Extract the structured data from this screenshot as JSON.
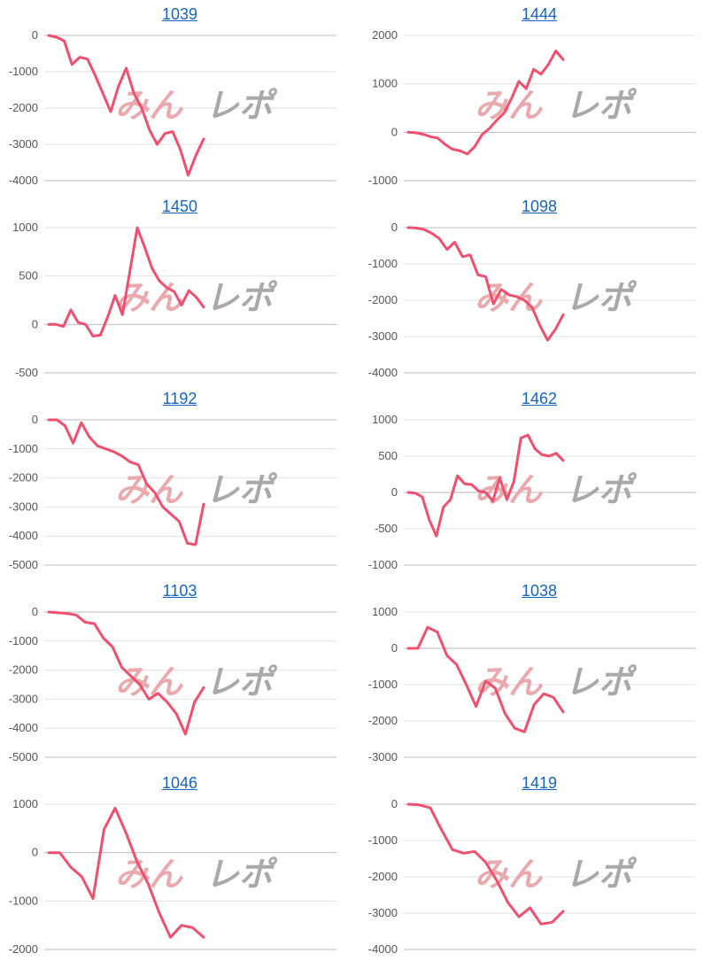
{
  "colors": {
    "line": "#f0506e",
    "grid": "#e2e2e2",
    "axis": "#bbbbbb",
    "tick_text": "#555555",
    "link": "#1565c0",
    "watermark_pink": "#e9a9ad",
    "watermark_gray": "#a9a9a9"
  },
  "chart_data": [
    {
      "type": "line",
      "title": "1039",
      "ylim": [
        -4000,
        0
      ],
      "yticks": [
        0,
        -1000,
        -2000,
        -3000,
        -4000
      ],
      "ytick_labels": [
        "0",
        "-1000",
        "-2000",
        "-3000",
        "-4000"
      ],
      "grid": true,
      "series": [
        {
          "values": [
            0,
            -50,
            -150,
            -800,
            -600,
            -650,
            -1100,
            -1600,
            -2100,
            -1400,
            -900,
            -1600,
            -2000,
            -2600,
            -3000,
            -2700,
            -2650,
            -3150,
            -3850,
            -3300,
            -2850
          ]
        }
      ]
    },
    {
      "type": "line",
      "title": "1444",
      "ylim": [
        -1000,
        2000
      ],
      "yticks": [
        2000,
        1000,
        0,
        -1000
      ],
      "ytick_labels": [
        "2000",
        "1000",
        "0",
        "-1000"
      ],
      "grid": true,
      "series": [
        {
          "values": [
            0,
            -10,
            -40,
            -90,
            -120,
            -250,
            -350,
            -380,
            -450,
            -300,
            -50,
            80,
            250,
            400,
            700,
            1050,
            900,
            1300,
            1200,
            1400,
            1680,
            1500
          ]
        }
      ]
    },
    {
      "type": "line",
      "title": "1450",
      "ylim": [
        -500,
        1000
      ],
      "yticks": [
        1000,
        500,
        0,
        -500
      ],
      "ytick_labels": [
        "1000",
        "500",
        "0",
        "-500"
      ],
      "grid": true,
      "series": [
        {
          "values": [
            0,
            0,
            -20,
            150,
            20,
            0,
            -120,
            -110,
            80,
            300,
            100,
            550,
            1000,
            800,
            580,
            450,
            380,
            340,
            200,
            350,
            280,
            180
          ]
        }
      ]
    },
    {
      "type": "line",
      "title": "1098",
      "ylim": [
        -4000,
        0
      ],
      "yticks": [
        0,
        -1000,
        -2000,
        -3000,
        -4000
      ],
      "ytick_labels": [
        "0",
        "-1000",
        "-2000",
        "-3000",
        "-4000"
      ],
      "grid": true,
      "series": [
        {
          "values": [
            0,
            -10,
            -50,
            -150,
            -300,
            -600,
            -400,
            -800,
            -750,
            -1300,
            -1350,
            -2100,
            -1700,
            -1850,
            -1900,
            -2000,
            -2200,
            -2700,
            -3100,
            -2800,
            -2400
          ]
        }
      ]
    },
    {
      "type": "line",
      "title": "1192",
      "ylim": [
        -5000,
        0
      ],
      "yticks": [
        0,
        -1000,
        -2000,
        -3000,
        -4000,
        -5000
      ],
      "ytick_labels": [
        "0",
        "-1000",
        "-2000",
        "-3000",
        "-4000",
        "-5000"
      ],
      "grid": true,
      "series": [
        {
          "values": [
            0,
            0,
            -200,
            -800,
            -100,
            -600,
            -900,
            -1000,
            -1100,
            -1250,
            -1450,
            -1550,
            -2200,
            -2500,
            -3000,
            -3250,
            -3500,
            -4250,
            -4300,
            -2900
          ]
        }
      ]
    },
    {
      "type": "line",
      "title": "1462",
      "ylim": [
        -1000,
        1000
      ],
      "yticks": [
        1000,
        500,
        0,
        -500,
        -1000
      ],
      "ytick_labels": [
        "1000",
        "500",
        "0",
        "-500",
        "-1000"
      ],
      "grid": true,
      "series": [
        {
          "values": [
            0,
            -10,
            -60,
            -380,
            -600,
            -200,
            -100,
            230,
            120,
            110,
            20,
            0,
            -120,
            200,
            -100,
            150,
            750,
            790,
            600,
            520,
            500,
            540,
            440
          ]
        }
      ]
    },
    {
      "type": "line",
      "title": "1103",
      "ylim": [
        -5000,
        0
      ],
      "yticks": [
        0,
        -1000,
        -2000,
        -3000,
        -4000,
        -5000
      ],
      "ytick_labels": [
        "0",
        "-1000",
        "-2000",
        "-3000",
        "-4000",
        "-5000"
      ],
      "grid": true,
      "series": [
        {
          "values": [
            0,
            -20,
            -50,
            -100,
            -350,
            -400,
            -900,
            -1200,
            -1900,
            -2200,
            -2500,
            -3000,
            -2800,
            -3100,
            -3500,
            -4200,
            -3100,
            -2600
          ]
        }
      ]
    },
    {
      "type": "line",
      "title": "1038",
      "ylim": [
        -3000,
        1000
      ],
      "yticks": [
        1000,
        0,
        -1000,
        -2000,
        -3000
      ],
      "ytick_labels": [
        "1000",
        "0",
        "-1000",
        "-2000",
        "-3000"
      ],
      "grid": true,
      "series": [
        {
          "values": [
            0,
            0,
            580,
            450,
            -200,
            -450,
            -1000,
            -1600,
            -900,
            -1100,
            -1800,
            -2200,
            -2300,
            -1550,
            -1250,
            -1350,
            -1750
          ]
        }
      ]
    },
    {
      "type": "line",
      "title": "1046",
      "ylim": [
        -2000,
        1000
      ],
      "yticks": [
        1000,
        0,
        -1000,
        -2000
      ],
      "ytick_labels": [
        "1000",
        "0",
        "-1000",
        "-2000"
      ],
      "grid": true,
      "series": [
        {
          "values": [
            0,
            0,
            -300,
            -500,
            -950,
            480,
            920,
            400,
            -200,
            -650,
            -1250,
            -1750,
            -1500,
            -1550,
            -1750
          ]
        }
      ]
    },
    {
      "type": "line",
      "title": "1419",
      "ylim": [
        -4000,
        0
      ],
      "yticks": [
        0,
        -1000,
        -2000,
        -3000,
        -4000
      ],
      "ytick_labels": [
        "0",
        "-1000",
        "-2000",
        "-3000",
        "-4000"
      ],
      "grid": true,
      "series": [
        {
          "values": [
            0,
            -20,
            -100,
            -700,
            -1250,
            -1350,
            -1300,
            -1600,
            -2100,
            -2700,
            -3100,
            -2850,
            -3300,
            -3250,
            -2950
          ]
        }
      ]
    }
  ]
}
